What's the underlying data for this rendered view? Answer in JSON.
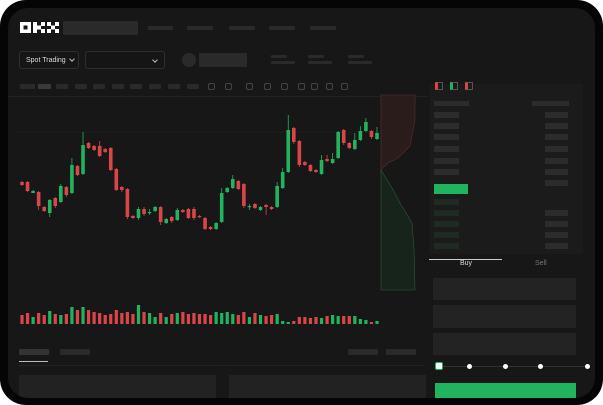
{
  "header": {
    "logo": "OKX"
  },
  "toolbar": {
    "market_select": "Spot Trading"
  },
  "trade_panel": {
    "tabs": [
      {
        "label": "Buy",
        "active": true
      },
      {
        "label": "Sell",
        "active": false
      }
    ],
    "slider_value": 0
  },
  "colors": {
    "up": "#22b35e",
    "down": "#d9464a",
    "accent": "#22b35e",
    "background": "#171717"
  },
  "icons": [
    "chevron-down-icon",
    "orderbook-both-icon",
    "orderbook-bids-icon",
    "orderbook-asks-icon"
  ],
  "chart_data": {
    "type": "candlestick",
    "fields": [
      "open",
      "close",
      "high",
      "low"
    ],
    "candles": [
      [
        68,
        65,
        69,
        64
      ],
      [
        68,
        59,
        69,
        58
      ],
      [
        57,
        59,
        60,
        57
      ],
      [
        58,
        44,
        59,
        40
      ],
      [
        43,
        39,
        44,
        38
      ],
      [
        37,
        50,
        51,
        33
      ],
      [
        52,
        44,
        53,
        42
      ],
      [
        48,
        64,
        66,
        47
      ],
      [
        63,
        55,
        64,
        53
      ],
      [
        57,
        85,
        92,
        56
      ],
      [
        84,
        75,
        85,
        74
      ],
      [
        76,
        105,
        118,
        75
      ],
      [
        107,
        102,
        108,
        101
      ],
      [
        104,
        100,
        105,
        99
      ],
      [
        104,
        94,
        109,
        93
      ],
      [
        101,
        98,
        102,
        97
      ],
      [
        102,
        80,
        103,
        79
      ],
      [
        81,
        60,
        82,
        59
      ],
      [
        63,
        60,
        64,
        58
      ],
      [
        61,
        33,
        62,
        31
      ],
      [
        34,
        32,
        35,
        31
      ],
      [
        32,
        41,
        43,
        30
      ],
      [
        41,
        36,
        43,
        34
      ],
      [
        37,
        38,
        41,
        35
      ],
      [
        39,
        43,
        44,
        38
      ],
      [
        43,
        28,
        44,
        25
      ],
      [
        27,
        31,
        32,
        26
      ],
      [
        33,
        29,
        34,
        27
      ],
      [
        30,
        40,
        42,
        29
      ],
      [
        40,
        38,
        41,
        37
      ],
      [
        41,
        32,
        42,
        31
      ],
      [
        41,
        32,
        43,
        30
      ],
      [
        34,
        33,
        35,
        32
      ],
      [
        32,
        21,
        33,
        20
      ],
      [
        23,
        21,
        24,
        20
      ],
      [
        21,
        27,
        28,
        20
      ],
      [
        28,
        57,
        62,
        27
      ],
      [
        58,
        62,
        63,
        57
      ],
      [
        62,
        71,
        75,
        61
      ],
      [
        69,
        61,
        70,
        60
      ],
      [
        66,
        44,
        67,
        42
      ],
      [
        43,
        44,
        46,
        40
      ],
      [
        46,
        42,
        47,
        41
      ],
      [
        40,
        43,
        44,
        39
      ],
      [
        45,
        43,
        46,
        35
      ],
      [
        43,
        41,
        44,
        40
      ],
      [
        43,
        64,
        68,
        42
      ],
      [
        62,
        78,
        82,
        61
      ],
      [
        78,
        120,
        135,
        77
      ],
      [
        122,
        108,
        123,
        106
      ],
      [
        109,
        85,
        110,
        83
      ],
      [
        88,
        85,
        89,
        84
      ],
      [
        85,
        79,
        86,
        78
      ],
      [
        80,
        78,
        81,
        77
      ],
      [
        76,
        90,
        95,
        75
      ],
      [
        91,
        89,
        95,
        88
      ],
      [
        87,
        91,
        97,
        86
      ],
      [
        92,
        118,
        119,
        91
      ],
      [
        120,
        107,
        121,
        105
      ],
      [
        107,
        102,
        108,
        101
      ],
      [
        101,
        110,
        117,
        100
      ],
      [
        110,
        119,
        124,
        109
      ],
      [
        119,
        128,
        132,
        118
      ],
      [
        119,
        113,
        120,
        111
      ],
      [
        111,
        117,
        123,
        110
      ]
    ],
    "volumes": [
      9,
      11,
      7,
      11,
      9,
      13,
      10,
      9,
      10,
      17,
      14,
      17,
      14,
      12,
      11,
      9,
      10,
      14,
      11,
      12,
      10,
      19,
      12,
      11,
      7,
      11,
      7,
      10,
      11,
      12,
      10,
      11,
      10,
      10,
      9,
      12,
      11,
      12,
      10,
      9,
      12,
      7,
      11,
      9,
      8,
      9,
      10,
      3,
      2,
      3,
      7,
      7,
      6,
      7,
      6,
      8,
      9,
      8,
      8,
      8,
      8,
      5,
      4,
      2,
      3
    ]
  }
}
